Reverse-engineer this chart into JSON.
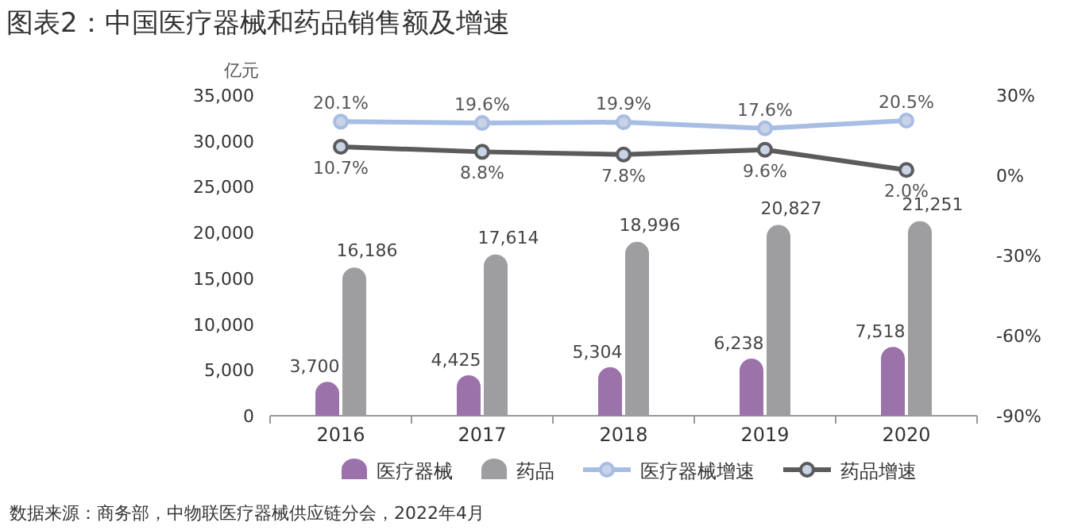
{
  "chart_data": {
    "type": "bar",
    "title": "图表2：中国医疗器械和药品销售额及增速",
    "ylabel": "亿元",
    "categories": [
      "2016",
      "2017",
      "2018",
      "2019",
      "2020"
    ],
    "series": [
      {
        "name": "医疗器械",
        "color": "#9b72aa",
        "values": [
          3700,
          4425,
          5304,
          6238,
          7518
        ],
        "value_labels": [
          "3,700",
          "4,425",
          "5,304",
          "6,238",
          "7,518"
        ]
      },
      {
        "name": "药品",
        "color": "#9e9ea0",
        "values": [
          16186,
          17614,
          18996,
          20827,
          21251
        ],
        "value_labels": [
          "16,186",
          "17,614",
          "18,996",
          "20,827",
          "21,251"
        ]
      },
      {
        "name": "医疗器械增速",
        "type": "line",
        "axis": "y2",
        "color": "#a7bde3",
        "values": [
          20.1,
          19.6,
          19.9,
          17.6,
          20.5
        ],
        "value_labels": [
          "20.1%",
          "19.6%",
          "19.9%",
          "17.6%",
          "20.5%"
        ]
      },
      {
        "name": "药品增速",
        "type": "line",
        "axis": "y2",
        "color": "#5b5b5e",
        "values": [
          10.7,
          8.8,
          7.8,
          9.6,
          2.0
        ],
        "value_labels": [
          "10.7%",
          "8.8%",
          "7.8%",
          "9.6%",
          "2.0%"
        ]
      }
    ],
    "ylim": [
      0,
      35000
    ],
    "yticks": [
      {
        "value": 0,
        "label": "0"
      },
      {
        "value": 5000,
        "label": "5,000"
      },
      {
        "value": 10000,
        "label": "10,000"
      },
      {
        "value": 15000,
        "label": "15,000"
      },
      {
        "value": 20000,
        "label": "20,000"
      },
      {
        "value": 25000,
        "label": "25,000"
      },
      {
        "value": 30000,
        "label": "30,000"
      },
      {
        "value": 35000,
        "label": "35,000"
      }
    ],
    "y2lim": [
      -90,
      30
    ],
    "y2ticks": [
      {
        "value": -90,
        "label": "-90%"
      },
      {
        "value": -60,
        "label": "-60%"
      },
      {
        "value": -30,
        "label": "-30%"
      },
      {
        "value": 0,
        "label": "0%"
      },
      {
        "value": 30,
        "label": "30%"
      }
    ],
    "marker": "circle",
    "legend": "bottom",
    "grid": false,
    "annotations": [
      "数据来源：商务部，中物联医疗器械供应链分会，2022年4月"
    ]
  }
}
